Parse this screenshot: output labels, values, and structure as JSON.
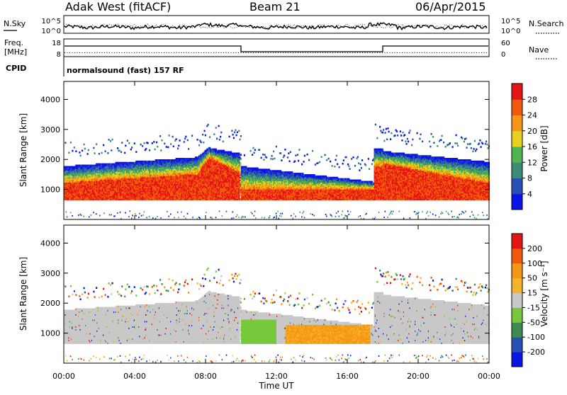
{
  "header": {
    "station": "Adak West (fitACF)",
    "beam": "Beam 21",
    "date": "06/Apr/2015"
  },
  "noise_panel": {
    "left_label": "N.Sky",
    "right_label": "N.Search",
    "ticks_left": [
      "10^5",
      "10^0"
    ],
    "ticks_right": [
      "10^5",
      "10^0"
    ]
  },
  "freq_panel": {
    "left_label_line1": "Freq.",
    "left_label_line2": "[MHz]",
    "right_label": "Nave",
    "ticks_left": [
      "18",
      "8"
    ],
    "ticks_right": [
      "60",
      "0"
    ]
  },
  "cpid": {
    "label": "CPID",
    "text": "normalsound (fast) 157 RF"
  },
  "chart_data": [
    {
      "type": "heatmap",
      "name": "power",
      "ylabel": "Slant Range [km]",
      "yticks": [
        "1000",
        "2000",
        "3000",
        "4000"
      ],
      "ylim": [
        0,
        4600
      ],
      "colorbar_label": "Power [dB]",
      "colorbar_ticks": [
        "4",
        "8",
        "12",
        "16",
        "20",
        "24",
        "28"
      ],
      "colorbar_range": [
        0,
        32
      ]
    },
    {
      "type": "heatmap",
      "name": "velocity",
      "ylabel": "Slant Range [km]",
      "yticks": [
        "1000",
        "2000",
        "3000",
        "4000"
      ],
      "ylim": [
        0,
        4600
      ],
      "colorbar_label": "Velocity [m s⁻¹]",
      "colorbar_ticks": [
        "200",
        "100",
        "50",
        "15",
        "-15",
        "-50",
        "-100",
        "-200"
      ]
    }
  ],
  "xaxis": {
    "label": "Time UT",
    "ticks": [
      "00:00",
      "04:00",
      "08:00",
      "12:00",
      "16:00",
      "20:00",
      "00:00"
    ]
  },
  "colors": {
    "power": [
      "#0a14e6",
      "#2850b4",
      "#3c8c78",
      "#50b450",
      "#e6d21e",
      "#f59614",
      "#f05a0a",
      "#e61414"
    ],
    "velocity": [
      "#e61414",
      "#f05a0a",
      "#f59614",
      "#f5b428",
      "#c8c8c8",
      "#78c83c",
      "#3c8c50",
      "#2850b4",
      "#0a14e6"
    ]
  }
}
